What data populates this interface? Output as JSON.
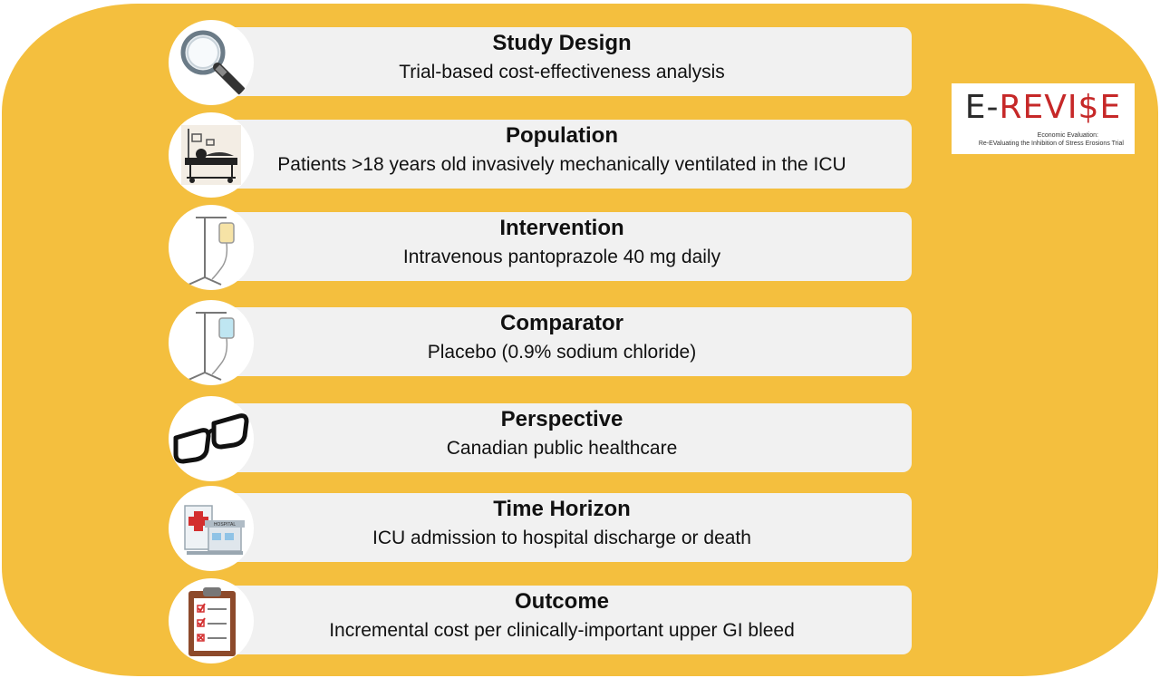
{
  "logo": {
    "prefix": "E-",
    "main": "REVI$E",
    "subtitle_line1": "Economic Evaluation:",
    "subtitle_line2": "Re-EValuating the Inhibition of Stress Erosions Trial",
    "colors": {
      "prefix": "#2b2b2b",
      "main": "#c62828",
      "dollar": "#2e7d32"
    }
  },
  "panel": {
    "color": "#f4bf3e"
  },
  "rows": [
    {
      "icon": "magnifying-glass-icon",
      "title": "Study Design",
      "description": "Trial-based cost-effectiveness analysis"
    },
    {
      "icon": "hospital-bed-icon",
      "title": "Population",
      "description": "Patients >18 years old invasively mechanically ventilated in the ICU"
    },
    {
      "icon": "iv-bag-icon",
      "title": "Intervention",
      "description": "Intravenous pantoprazole 40 mg daily"
    },
    {
      "icon": "iv-bag-icon",
      "title": "Comparator",
      "description": "Placebo (0.9% sodium chloride)"
    },
    {
      "icon": "eyeglasses-icon",
      "title": "Perspective",
      "description": "Canadian public healthcare"
    },
    {
      "icon": "hospital-building-icon",
      "title": "Time Horizon",
      "description": "ICU admission to hospital discharge or death"
    },
    {
      "icon": "clipboard-checklist-icon",
      "title": "Outcome",
      "description": "Incremental cost per clinically-important upper GI bleed"
    }
  ],
  "hospital_sign": "HOSPITAL"
}
